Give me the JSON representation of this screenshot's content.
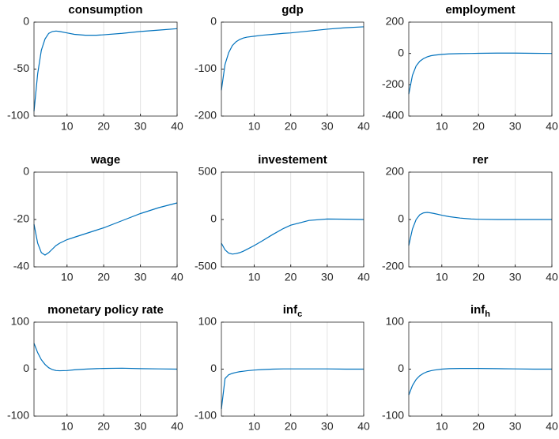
{
  "chart_data": [
    {
      "type": "line",
      "title": "consumption",
      "x": [
        1,
        2,
        3,
        4,
        5,
        6,
        7,
        8,
        10,
        12,
        15,
        18,
        20,
        25,
        30,
        35,
        40
      ],
      "values": [
        -95,
        -55,
        -30,
        -18,
        -12,
        -10,
        -9.5,
        -10,
        -11.5,
        -13,
        -14,
        -14,
        -13.5,
        -12,
        -10,
        -8.5,
        -7
      ],
      "color": "#0072bd",
      "xlim": [
        1,
        40
      ],
      "xticks": [
        10,
        20,
        30,
        40
      ],
      "ylim": [
        -100,
        0
      ],
      "yticks": [
        -100,
        -50,
        0
      ],
      "xgrid": true
    },
    {
      "type": "line",
      "title": "gdp",
      "x": [
        1,
        2,
        3,
        4,
        5,
        6,
        7,
        8,
        10,
        12,
        15,
        18,
        20,
        25,
        30,
        35,
        40
      ],
      "values": [
        -145,
        -90,
        -65,
        -50,
        -42,
        -37,
        -34,
        -32,
        -30,
        -28,
        -26,
        -24,
        -23,
        -19,
        -15,
        -12,
        -10
      ],
      "color": "#0072bd",
      "xlim": [
        1,
        40
      ],
      "xticks": [
        10,
        20,
        30,
        40
      ],
      "ylim": [
        -200,
        0
      ],
      "yticks": [
        -200,
        -100,
        0
      ],
      "xgrid": true
    },
    {
      "type": "line",
      "title": "employment",
      "x": [
        1,
        2,
        3,
        4,
        5,
        6,
        7,
        8,
        10,
        12,
        15,
        18,
        20,
        25,
        30,
        35,
        40
      ],
      "values": [
        -260,
        -140,
        -80,
        -50,
        -33,
        -22,
        -15,
        -11,
        -6,
        -3,
        -1,
        0,
        1,
        2,
        2,
        1,
        0
      ],
      "color": "#0072bd",
      "xlim": [
        1,
        40
      ],
      "xticks": [
        10,
        20,
        30,
        40
      ],
      "ylim": [
        -400,
        200
      ],
      "yticks": [
        -400,
        -200,
        0,
        200
      ],
      "xgrid": true
    },
    {
      "type": "line",
      "title": "wage",
      "x": [
        1,
        2,
        3,
        4,
        5,
        6,
        7,
        8,
        10,
        12,
        15,
        18,
        20,
        25,
        30,
        35,
        40
      ],
      "values": [
        -22,
        -30,
        -34,
        -35,
        -34,
        -32.5,
        -31,
        -30,
        -28.5,
        -27.5,
        -26,
        -24.5,
        -23.5,
        -20.5,
        -17.5,
        -15,
        -13
      ],
      "color": "#0072bd",
      "xlim": [
        1,
        40
      ],
      "xticks": [
        10,
        20,
        30,
        40
      ],
      "ylim": [
        -40,
        0
      ],
      "yticks": [
        -40,
        -20,
        0
      ],
      "xgrid": true
    },
    {
      "type": "line",
      "title": "investement",
      "x": [
        1,
        2,
        3,
        4,
        5,
        6,
        7,
        8,
        10,
        12,
        15,
        18,
        20,
        25,
        30,
        35,
        40
      ],
      "values": [
        -250,
        -320,
        -355,
        -365,
        -360,
        -350,
        -335,
        -315,
        -275,
        -230,
        -160,
        -95,
        -60,
        -10,
        5,
        3,
        0
      ],
      "color": "#0072bd",
      "xlim": [
        1,
        40
      ],
      "xticks": [
        10,
        20,
        30,
        40
      ],
      "ylim": [
        -500,
        500
      ],
      "yticks": [
        -500,
        0,
        500
      ],
      "xgrid": true
    },
    {
      "type": "line",
      "title": "rer",
      "x": [
        1,
        2,
        3,
        4,
        5,
        6,
        7,
        8,
        10,
        12,
        15,
        18,
        20,
        25,
        30,
        35,
        40
      ],
      "values": [
        -110,
        -40,
        0,
        20,
        28,
        30,
        28,
        25,
        18,
        12,
        6,
        2,
        1,
        0,
        0,
        0,
        0
      ],
      "color": "#0072bd",
      "xlim": [
        1,
        40
      ],
      "xticks": [
        10,
        20,
        30,
        40
      ],
      "ylim": [
        -200,
        200
      ],
      "yticks": [
        -200,
        0,
        200
      ],
      "xgrid": true
    },
    {
      "type": "line",
      "title": "monetary policy rate",
      "x": [
        1,
        2,
        3,
        4,
        5,
        6,
        7,
        8,
        10,
        12,
        15,
        18,
        20,
        25,
        30,
        35,
        40
      ],
      "values": [
        55,
        35,
        20,
        10,
        3,
        -1,
        -3,
        -3.5,
        -3,
        -1.5,
        0,
        1,
        1.5,
        2,
        1,
        0.5,
        0
      ],
      "color": "#0072bd",
      "xlim": [
        1,
        40
      ],
      "xticks": [
        10,
        20,
        30,
        40
      ],
      "ylim": [
        -100,
        100
      ],
      "yticks": [
        -100,
        0,
        100
      ],
      "xgrid": true
    },
    {
      "type": "line",
      "title": "inf",
      "title_subscript": "c",
      "x": [
        1,
        2,
        3,
        4,
        5,
        6,
        7,
        8,
        10,
        12,
        15,
        18,
        20,
        25,
        30,
        35,
        40
      ],
      "values": [
        -85,
        -20,
        -12,
        -9,
        -7,
        -5.5,
        -4.5,
        -3.5,
        -2,
        -1,
        0,
        0.5,
        0.5,
        0.5,
        0.5,
        0,
        0
      ],
      "color": "#0072bd",
      "xlim": [
        1,
        40
      ],
      "xticks": [
        10,
        20,
        30,
        40
      ],
      "ylim": [
        -100,
        100
      ],
      "yticks": [
        -100,
        0,
        100
      ],
      "xgrid": true
    },
    {
      "type": "line",
      "title": "inf",
      "title_subscript": "h",
      "x": [
        1,
        2,
        3,
        4,
        5,
        6,
        7,
        8,
        10,
        12,
        15,
        18,
        20,
        25,
        30,
        35,
        40
      ],
      "values": [
        -55,
        -35,
        -22,
        -14,
        -9,
        -5.5,
        -3.5,
        -2,
        0,
        1,
        1.5,
        1.5,
        1.5,
        1,
        0.5,
        0,
        0
      ],
      "color": "#0072bd",
      "xlim": [
        1,
        40
      ],
      "xticks": [
        10,
        20,
        30,
        40
      ],
      "ylim": [
        -100,
        100
      ],
      "yticks": [
        -100,
        0,
        100
      ],
      "xgrid": true
    }
  ]
}
